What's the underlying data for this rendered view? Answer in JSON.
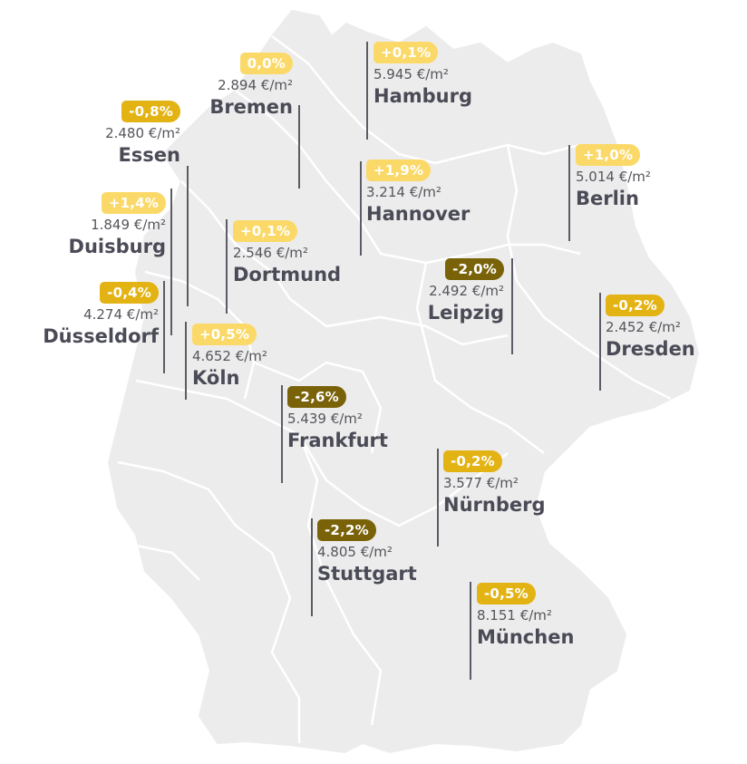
{
  "colors": {
    "land": "#ececec",
    "border": "#ffffff",
    "light": "#fbd968",
    "mid": "#e3b314",
    "dark": "#7a6209",
    "text": "#4b4b57",
    "line": "#5c5c66"
  },
  "cities": [
    {
      "id": "bremen",
      "change": "0,0%",
      "price": "2.894 €/m²",
      "name": "Bremen",
      "tone": "light"
    },
    {
      "id": "hamburg",
      "change": "+0,1%",
      "price": "5.945 €/m²",
      "name": "Hamburg",
      "tone": "light"
    },
    {
      "id": "essen",
      "change": "-0,8%",
      "price": "2.480 €/m²",
      "name": "Essen",
      "tone": "mid"
    },
    {
      "id": "hannover",
      "change": "+1,9%",
      "price": "3.214 €/m²",
      "name": "Hannover",
      "tone": "light"
    },
    {
      "id": "berlin",
      "change": "+1,0%",
      "price": "5.014 €/m²",
      "name": "Berlin",
      "tone": "light"
    },
    {
      "id": "duisburg",
      "change": "+1,4%",
      "price": "1.849 €/m²",
      "name": "Duisburg",
      "tone": "light"
    },
    {
      "id": "dortmund",
      "change": "+0,1%",
      "price": "2.546 €/m²",
      "name": "Dortmund",
      "tone": "light"
    },
    {
      "id": "leipzig",
      "change": "-2,0%",
      "price": "2.492 €/m²",
      "name": "Leipzig",
      "tone": "dark"
    },
    {
      "id": "duesseldorf",
      "change": "-0,4%",
      "price": "4.274 €/m²",
      "name": "Düsseldorf",
      "tone": "mid"
    },
    {
      "id": "dresden",
      "change": "-0,2%",
      "price": "2.452 €/m²",
      "name": "Dresden",
      "tone": "mid"
    },
    {
      "id": "koeln",
      "change": "+0,5%",
      "price": "4.652 €/m²",
      "name": "Köln",
      "tone": "light"
    },
    {
      "id": "frankfurt",
      "change": "-2,6%",
      "price": "5.439 €/m²",
      "name": "Frankfurt",
      "tone": "dark"
    },
    {
      "id": "nuernberg",
      "change": "-0,2%",
      "price": "3.577 €/m²",
      "name": "Nürnberg",
      "tone": "mid"
    },
    {
      "id": "stuttgart",
      "change": "-2,2%",
      "price": "4.805 €/m²",
      "name": "Stuttgart",
      "tone": "dark"
    },
    {
      "id": "muenchen",
      "change": "-0,5%",
      "price": "8.151 €/m²",
      "name": "München",
      "tone": "mid"
    }
  ]
}
